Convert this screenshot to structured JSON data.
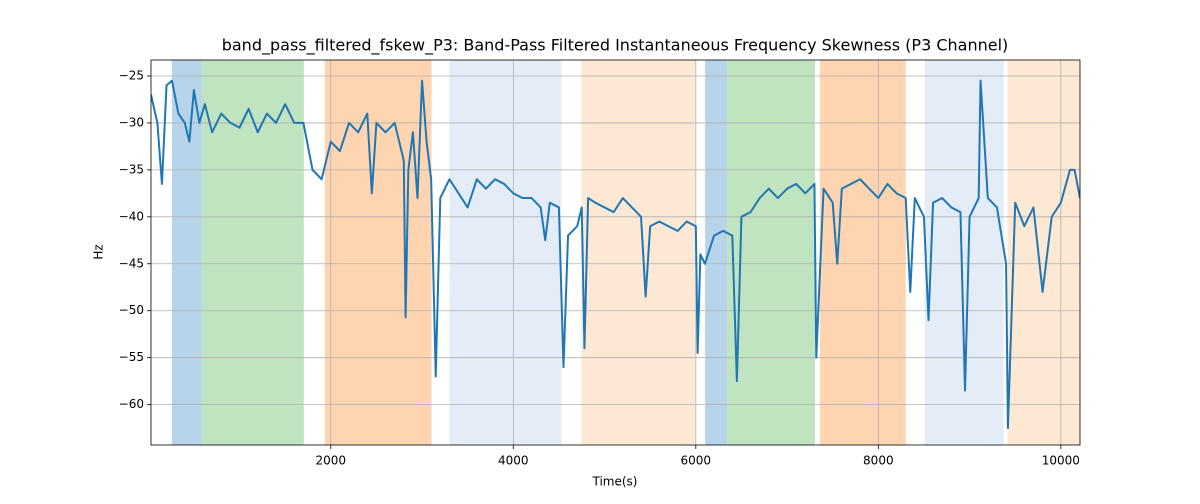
{
  "chart_data": {
    "type": "line",
    "title": "band_pass_filtered_fskew_P3: Band-Pass Filtered Instantaneous Frequency Skewness (P3 Channel)",
    "xlabel": "Time(s)",
    "ylabel": "Hz",
    "xlim": [
      30,
      10210
    ],
    "ylim": [
      -64.3,
      -23.3
    ],
    "xticks": [
      2000,
      4000,
      6000,
      8000,
      10000
    ],
    "yticks": [
      {
        "value": -60,
        "label": "−60"
      },
      {
        "value": -55,
        "label": "−55"
      },
      {
        "value": -50,
        "label": "−50"
      },
      {
        "value": -45,
        "label": "−45"
      },
      {
        "value": -40,
        "label": "−40"
      },
      {
        "value": -35,
        "label": "−35"
      },
      {
        "value": -30,
        "label": "−30"
      },
      {
        "value": -25,
        "label": "−25"
      }
    ],
    "grid": true,
    "regions": [
      {
        "start": 260,
        "end": 588,
        "color": "#b8d4ea"
      },
      {
        "start": 588,
        "end": 1704,
        "color": "#c0e3c0"
      },
      {
        "start": 1934,
        "end": 3104,
        "color": "#ffd4b0"
      },
      {
        "start": 3301,
        "end": 4527,
        "color": "#e4ecf7"
      },
      {
        "start": 4745,
        "end": 5993,
        "color": "#fde8d3"
      },
      {
        "start": 6102,
        "end": 6343,
        "color": "#b8d4ea"
      },
      {
        "start": 6343,
        "end": 7306,
        "color": "#c0e3c0"
      },
      {
        "start": 7360,
        "end": 8301,
        "color": "#ffd4b0"
      },
      {
        "start": 8509,
        "end": 9373,
        "color": "#e4ecf7"
      },
      {
        "start": 9417,
        "end": 10210,
        "color": "#fde8d3"
      }
    ],
    "x": [
      30,
      100,
      150,
      200,
      260,
      330,
      400,
      450,
      500,
      560,
      620,
      700,
      800,
      900,
      1000,
      1100,
      1200,
      1300,
      1400,
      1500,
      1600,
      1700,
      1800,
      1900,
      2000,
      2100,
      2200,
      2300,
      2400,
      2450,
      2500,
      2600,
      2700,
      2800,
      2820,
      2850,
      2900,
      2950,
      3000,
      3050,
      3100,
      3150,
      3200,
      3300,
      3400,
      3500,
      3600,
      3700,
      3800,
      3900,
      4000,
      4100,
      4200,
      4300,
      4350,
      4400,
      4500,
      4550,
      4600,
      4700,
      4750,
      4780,
      4820,
      4900,
      5000,
      5100,
      5200,
      5300,
      5400,
      5450,
      5500,
      5600,
      5700,
      5800,
      5900,
      6000,
      6020,
      6050,
      6100,
      6200,
      6300,
      6400,
      6450,
      6500,
      6600,
      6700,
      6800,
      6900,
      7000,
      7100,
      7200,
      7300,
      7320,
      7400,
      7500,
      7550,
      7600,
      7700,
      7800,
      7900,
      8000,
      8100,
      8200,
      8300,
      8350,
      8400,
      8500,
      8550,
      8600,
      8700,
      8800,
      8900,
      8950,
      9000,
      9100,
      9120,
      9200,
      9300,
      9400,
      9420,
      9500,
      9600,
      9700,
      9800,
      9900,
      10000,
      10100,
      10150,
      10210
    ],
    "series": [
      {
        "name": "band_pass_filtered_fskew_P3",
        "color": "#1f77b4",
        "values": [
          -27,
          -30,
          -36.5,
          -26,
          -25.5,
          -29,
          -30,
          -32,
          -26.5,
          -30,
          -28,
          -31,
          -29,
          -30,
          -30.5,
          -28.5,
          -31,
          -29,
          -30,
          -28,
          -30,
          -30,
          -35,
          -36,
          -32,
          -33,
          -30,
          -31,
          -29,
          -37.5,
          -30,
          -31,
          -30,
          -34,
          -50.7,
          -35,
          -31,
          -38,
          -25.5,
          -32,
          -36,
          -57,
          -38,
          -36,
          -37.5,
          -39,
          -36,
          -37,
          -36,
          -36.5,
          -37.5,
          -38,
          -38,
          -39,
          -42.5,
          -38.5,
          -39,
          -56,
          -42,
          -41,
          -39,
          -54,
          -38,
          -38.5,
          -39,
          -39.5,
          -38,
          -39,
          -40,
          -48.5,
          -41,
          -40.5,
          -41,
          -41.5,
          -40.5,
          -41,
          -54.5,
          -44,
          -45,
          -42,
          -41.5,
          -42,
          -57.5,
          -40,
          -39.5,
          -38,
          -37,
          -38,
          -37,
          -36.5,
          -37.5,
          -36.5,
          -55,
          -37,
          -38.5,
          -45,
          -37,
          -36.5,
          -36,
          -37,
          -38,
          -36.5,
          -37.5,
          -38,
          -48,
          -38,
          -40,
          -51,
          -38.5,
          -38,
          -39,
          -39.5,
          -58.5,
          -40,
          -38,
          -25.5,
          -38,
          -39,
          -45,
          -62.5,
          -38.5,
          -41,
          -39,
          -48,
          -40,
          -38.5,
          -35,
          -35,
          -38
        ]
      }
    ]
  }
}
